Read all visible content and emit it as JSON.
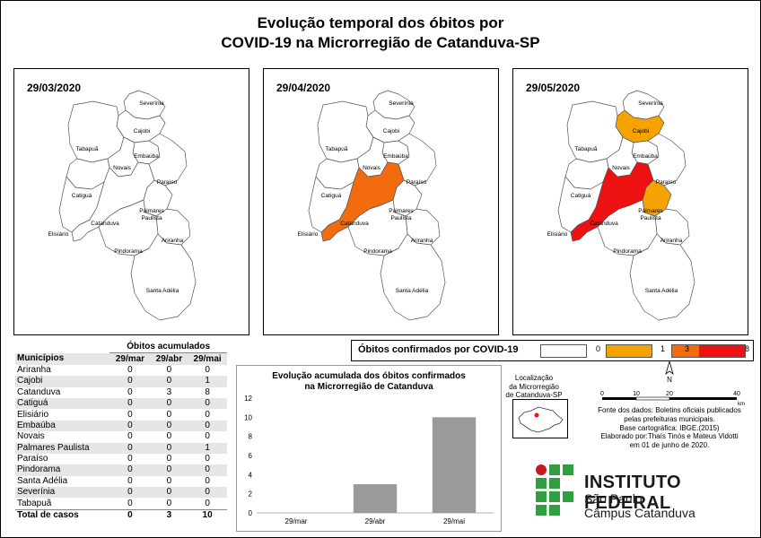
{
  "title_line1": "Evolução temporal dos óbitos por",
  "title_line2": "COVID-19 na Microrregião de Catanduva-SP",
  "maps": [
    {
      "date": "29/03/2020",
      "deaths": {
        "Ariranha": 0,
        "Cajobi": 0,
        "Catanduva": 0,
        "Catiguá": 0,
        "Elisiário": 0,
        "Embaúba": 0,
        "Novais": 0,
        "Palmares Paulista": 0,
        "Paraíso": 0,
        "Pindorama": 0,
        "Santa Adélia": 0,
        "Severínia": 0,
        "Tabapuã": 0
      }
    },
    {
      "date": "29/04/2020",
      "deaths": {
        "Ariranha": 0,
        "Cajobi": 0,
        "Catanduva": 3,
        "Catiguá": 0,
        "Elisiário": 0,
        "Embaúba": 0,
        "Novais": 0,
        "Palmares Paulista": 0,
        "Paraíso": 0,
        "Pindorama": 0,
        "Santa Adélia": 0,
        "Severínia": 0,
        "Tabapuã": 0
      }
    },
    {
      "date": "29/05/2020",
      "deaths": {
        "Ariranha": 0,
        "Cajobi": 1,
        "Catanduva": 8,
        "Catiguá": 0,
        "Elisiário": 0,
        "Embaúba": 0,
        "Novais": 0,
        "Palmares Paulista": 1,
        "Paraíso": 0,
        "Pindorama": 0,
        "Santa Adélia": 0,
        "Severínia": 0,
        "Tabapuã": 0
      }
    }
  ],
  "map_labels": {
    "severinia": "Severínia",
    "cajobi": "Cajobi",
    "tabapua": "Tabapuã",
    "embauba": "Embaúba",
    "novais": "Novais",
    "paraiso": "Paraíso",
    "catigua": "Catiguá",
    "palmares_1": "Palmares",
    "palmares_2": "Paulista",
    "catanduva": "Catanduva",
    "elisiario": "Elisiário",
    "ariranha": "Ariranha",
    "pindorama": "Pindorama",
    "santa_adelia": "Santa Adélia"
  },
  "legend": {
    "title": "Óbitos confirmados por COVID-19",
    "classes": [
      {
        "label": "0",
        "color": "#ffffff"
      },
      {
        "label": "1",
        "color": "#f5a300"
      },
      {
        "label": "3",
        "color": "#f26b0f"
      },
      {
        "label": "8",
        "color": "#ee1111"
      }
    ]
  },
  "table": {
    "group_header": "Óbitos acumulados",
    "col_municipio": "Municípios",
    "col_dates": [
      "29/mar",
      "29/abr",
      "29/mai"
    ],
    "rows": [
      {
        "name": "Ariranha",
        "v": [
          "0",
          "0",
          "0"
        ]
      },
      {
        "name": "Cajobi",
        "v": [
          "0",
          "0",
          "1"
        ]
      },
      {
        "name": "Catanduva",
        "v": [
          "0",
          "3",
          "8"
        ]
      },
      {
        "name": "Catiguá",
        "v": [
          "0",
          "0",
          "0"
        ]
      },
      {
        "name": "Elisiário",
        "v": [
          "0",
          "0",
          "0"
        ]
      },
      {
        "name": "Embaúba",
        "v": [
          "0",
          "0",
          "0"
        ]
      },
      {
        "name": "Novais",
        "v": [
          "0",
          "0",
          "0"
        ]
      },
      {
        "name": "Palmares Paulista",
        "v": [
          "0",
          "0",
          "1"
        ]
      },
      {
        "name": "Paraíso",
        "v": [
          "0",
          "0",
          "0"
        ]
      },
      {
        "name": "Pindorama",
        "v": [
          "0",
          "0",
          "0"
        ]
      },
      {
        "name": "Santa Adélia",
        "v": [
          "0",
          "0",
          "0"
        ]
      },
      {
        "name": "Severínia",
        "v": [
          "0",
          "0",
          "0"
        ]
      },
      {
        "name": "Tabapuã",
        "v": [
          "0",
          "0",
          "0"
        ]
      }
    ],
    "total_label": "Total de casos",
    "totals": [
      "0",
      "3",
      "10"
    ]
  },
  "chart_data": {
    "type": "bar",
    "title_line1": "Evolução acumulada dos óbitos confirmados",
    "title_line2": "na Microrregião de Catanduva",
    "categories": [
      "29/mar",
      "29/abr",
      "29/mai"
    ],
    "values": [
      0,
      3,
      10
    ],
    "ylim": [
      0,
      12
    ],
    "yticks": [
      0,
      2,
      4,
      6,
      8,
      10,
      12
    ],
    "grid": false,
    "bar_color": "#9a9a9a"
  },
  "inset": {
    "line1": "Localização",
    "line2": "da Microrregião",
    "line3": "de Catanduva-SP"
  },
  "north_label": "N",
  "scale": {
    "ticks": [
      "0",
      "10",
      "20",
      "40"
    ],
    "unit": "km"
  },
  "source": {
    "line1": "Fonte dos dados: Boletins oficiais publicados",
    "line2": "pelas prefeituras municipais.",
    "line3": "Base cartográfica: IBGE.(2015)",
    "line4": "Elaborado por:Thaís Tinós e Mateus Vidotti",
    "line5": "em 01 de junho de 2020."
  },
  "logo": {
    "title": "INSTITUTO FEDERAL",
    "sub1": "São Paulo",
    "sub2": "Câmpus Catanduva",
    "green": "#2f9e41",
    "red": "#c8191e"
  }
}
